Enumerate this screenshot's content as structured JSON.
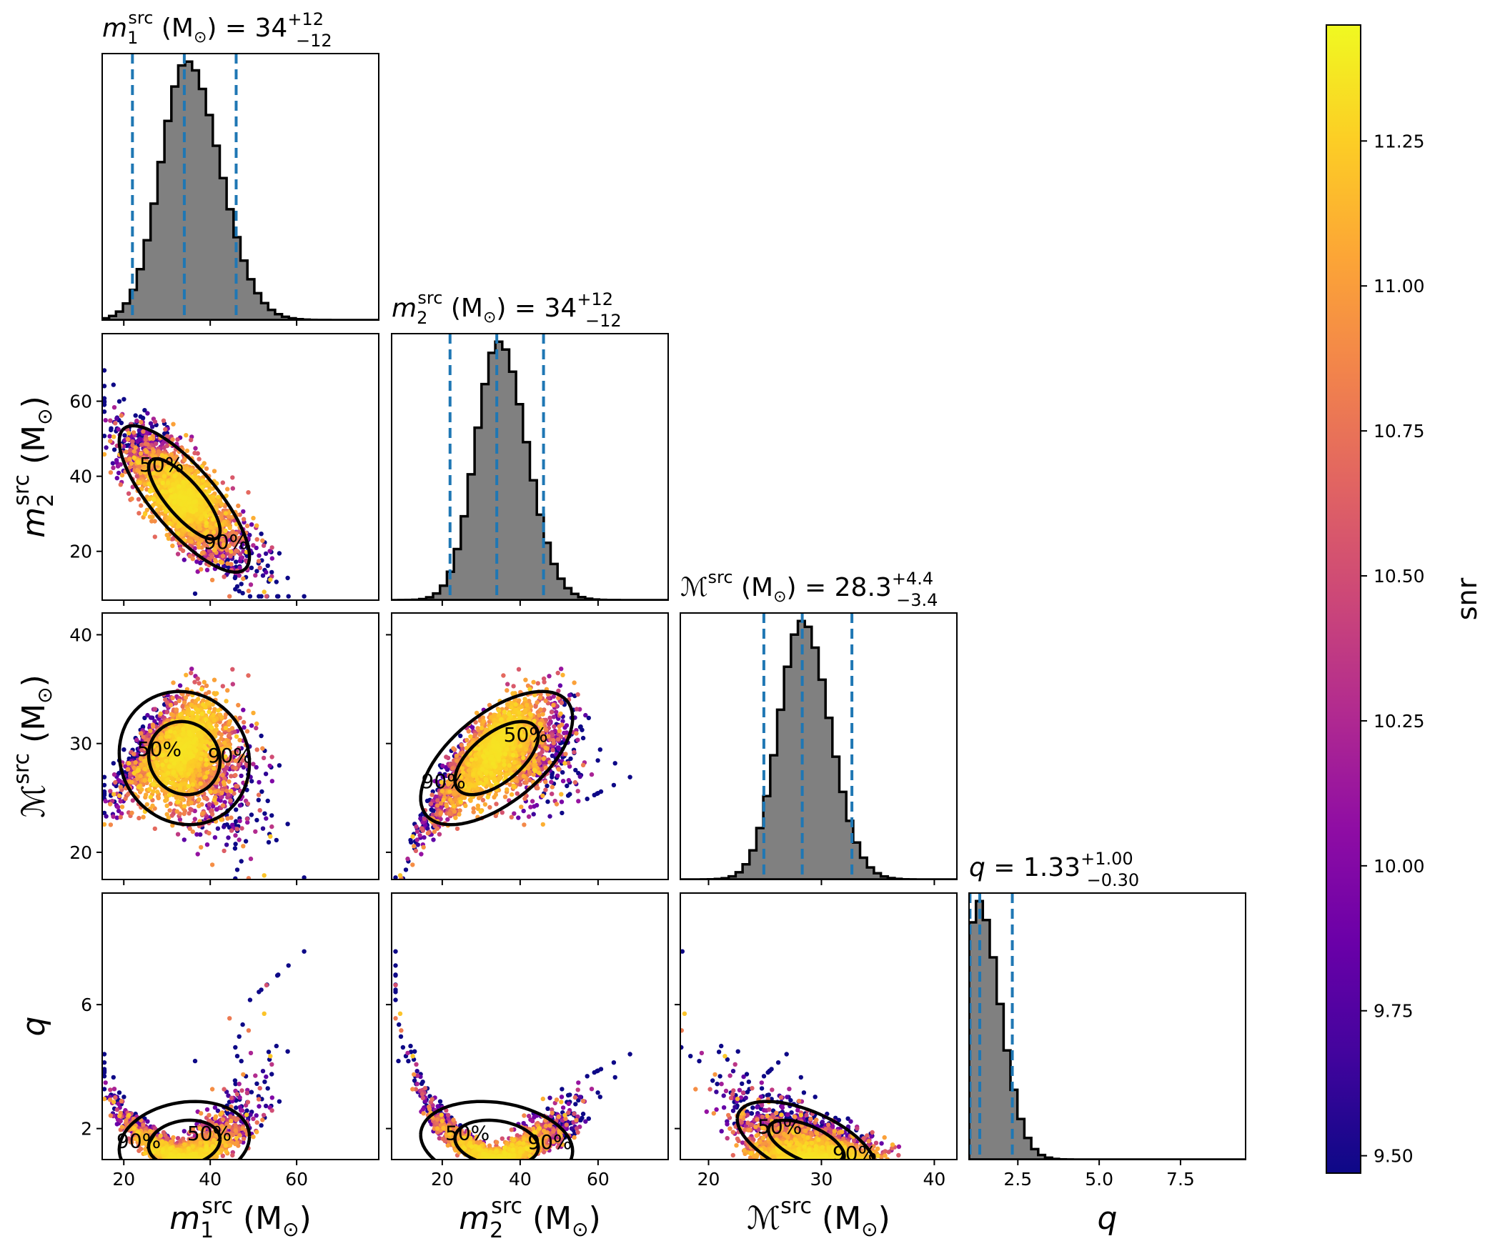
{
  "chart_data": {
    "type": "corner",
    "parameters": [
      {
        "key": "m1",
        "sym": "m",
        "sub": "1",
        "sup": "src",
        "script": false,
        "unit": "M",
        "title_value": "34",
        "title_plus": "+12",
        "title_minus": "−12",
        "range": [
          15,
          79
        ],
        "ticks": [
          20,
          40,
          60
        ],
        "tick_labels": [
          "20",
          "40",
          "60"
        ],
        "median": 34,
        "lower": 22,
        "upper": 46,
        "dist": {
          "mu": 34.5,
          "sigma": 6.5,
          "skew": 0.35
        }
      },
      {
        "key": "m2",
        "sym": "m",
        "sub": "2",
        "sup": "src",
        "script": false,
        "unit": "M",
        "title_value": "34",
        "title_plus": "+12",
        "title_minus": "−12",
        "range": [
          7,
          78
        ],
        "ticks": [
          20,
          40,
          60
        ],
        "tick_labels": [
          "20",
          "40",
          "60"
        ],
        "median": 34,
        "lower": 22,
        "upper": 46,
        "dist": {
          "mu": 34.5,
          "sigma": 6.3,
          "skew": 0.25
        }
      },
      {
        "key": "mc",
        "sym": "ℳ",
        "sub": "",
        "sup": "src",
        "script": true,
        "unit": "M",
        "title_value": "28.3",
        "title_plus": "+4.4",
        "title_minus": "−3.4",
        "range": [
          17.5,
          42
        ],
        "ticks": [
          20,
          30,
          40
        ],
        "tick_labels": [
          "20",
          "30",
          "40"
        ],
        "median": 28.3,
        "lower": 24.9,
        "upper": 32.7,
        "dist": {
          "mu": 28.3,
          "sigma": 2.2,
          "skew": 0.2
        }
      },
      {
        "key": "q",
        "sym": "q",
        "sub": "",
        "sup": "",
        "script": false,
        "unit": "",
        "title_value": "1.33",
        "title_plus": "+1.00",
        "title_minus": "−0.30",
        "range": [
          1.0,
          9.5
        ],
        "ticks": [
          2.5,
          5.0,
          7.5
        ],
        "tick_labels": [
          "2.5",
          "5.0",
          "7.5"
        ],
        "scatter_ticks": [
          2,
          6
        ],
        "scatter_tick_labels": [
          "2",
          "6"
        ],
        "scatter_range": [
          1.0,
          9.6
        ],
        "median": 1.33,
        "lower": 1.03,
        "upper": 2.33,
        "dist": {
          "mu": 1.25,
          "sigma": 0.45,
          "skew": 1.0
        }
      }
    ],
    "unit_symbol": "M",
    "unit_sub": "⊙",
    "contour_levels": [
      "50%",
      "90%"
    ],
    "colorbar": {
      "label": "snr",
      "range": [
        9.47,
        11.45
      ],
      "ticks": [
        9.5,
        9.75,
        10.0,
        10.25,
        10.5,
        10.75,
        11.0,
        11.25
      ],
      "tick_labels": [
        "9.50",
        "9.75",
        "10.00",
        "10.25",
        "10.50",
        "10.75",
        "11.00",
        "11.25"
      ],
      "colormap": "plasma"
    },
    "colors": {
      "histogram_fill": "#808080",
      "histogram_edge": "#000000",
      "quantile_lines": "#1f77b4",
      "contours": "#000000"
    }
  }
}
